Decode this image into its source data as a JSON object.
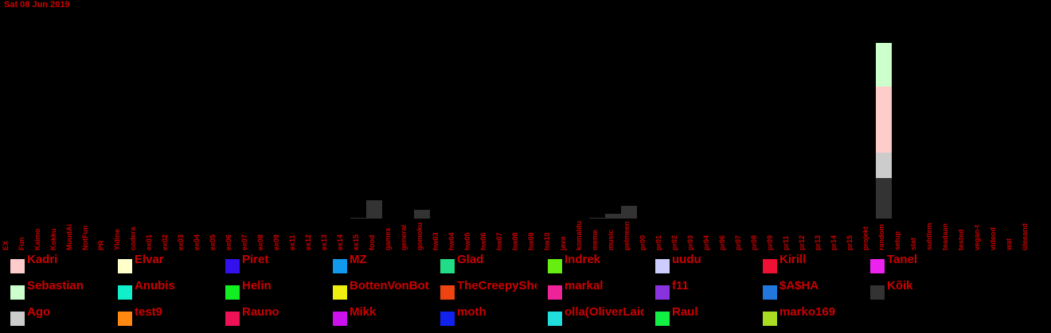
{
  "header": {
    "date": "Sat 08 Jun 2019"
  },
  "colors": {
    "text": "#cc0000",
    "background": "#000000"
  },
  "chart_data": {
    "type": "bar",
    "stacked": true,
    "categories": [
      "EX",
      "Fun",
      "Kalmo",
      "Kokku",
      "MuudAi",
      "NotFun",
      "PR",
      "Yldine",
      "codera",
      "ex01",
      "ex02",
      "ex03",
      "ex04",
      "ex05",
      "ex06",
      "ex07",
      "ex08",
      "ex09",
      "ex11",
      "ex12",
      "ex13",
      "ex14",
      "ex15",
      "food",
      "games",
      "general",
      "gomoku",
      "hw03",
      "hw04",
      "hw05",
      "hw06",
      "hw07",
      "hw08",
      "hw09",
      "hw10",
      "java",
      "komaldu",
      "meme",
      "music",
      "pelmeen",
      "pr00",
      "pr01",
      "pr02",
      "pr03",
      "pr04",
      "pr06",
      "pr07",
      "pr08",
      "pr09",
      "pr11",
      "pr12",
      "pr13",
      "pr14",
      "pr15",
      "projekt",
      "random",
      "setup",
      "stat",
      "suhtlem",
      "teadaan",
      "tested",
      "vegan-t",
      "videod",
      "wat",
      "üleeand"
    ],
    "series": [
      {
        "name": "Kõik",
        "color": "#333333",
        "values": [
          0,
          0,
          0,
          0,
          0,
          0,
          0,
          0,
          0,
          0,
          0,
          0,
          0,
          0,
          0,
          0,
          0,
          0,
          0,
          0,
          0,
          0,
          1,
          23,
          0,
          0,
          11,
          0,
          0,
          0,
          0,
          0,
          0,
          0,
          0,
          0,
          0,
          1,
          6,
          16,
          0,
          0,
          0,
          0,
          0,
          0,
          0,
          0,
          0,
          0,
          0,
          0,
          0,
          0,
          0,
          51,
          0,
          0,
          0,
          0,
          0,
          0,
          0,
          0,
          0
        ]
      },
      {
        "name": "Ago",
        "color": "#cccccc",
        "values": [
          0,
          0,
          0,
          0,
          0,
          0,
          0,
          0,
          0,
          0,
          0,
          0,
          0,
          0,
          0,
          0,
          0,
          0,
          0,
          0,
          0,
          0,
          0,
          0,
          0,
          0,
          0,
          0,
          0,
          0,
          0,
          0,
          0,
          0,
          0,
          0,
          0,
          0,
          0,
          0,
          0,
          0,
          0,
          0,
          0,
          0,
          0,
          0,
          0,
          0,
          0,
          0,
          0,
          0,
          0,
          32,
          0,
          0,
          0,
          0,
          0,
          0,
          0,
          0,
          0
        ]
      },
      {
        "name": "Kadri",
        "color": "#ffcccc",
        "values": [
          0,
          0,
          0,
          0,
          0,
          0,
          0,
          0,
          0,
          0,
          0,
          0,
          0,
          0,
          0,
          0,
          0,
          0,
          0,
          0,
          0,
          0,
          0,
          0,
          0,
          0,
          0,
          0,
          0,
          0,
          0,
          0,
          0,
          0,
          0,
          0,
          0,
          0,
          0,
          0,
          0,
          0,
          0,
          0,
          0,
          0,
          0,
          0,
          0,
          0,
          0,
          0,
          0,
          0,
          0,
          83,
          0,
          0,
          0,
          0,
          0,
          0,
          0,
          0,
          0
        ]
      },
      {
        "name": "Sebastian",
        "color": "#ccffcc",
        "values": [
          0,
          0,
          0,
          0,
          0,
          0,
          0,
          0,
          0,
          0,
          0,
          0,
          0,
          0,
          0,
          0,
          0,
          0,
          0,
          0,
          0,
          0,
          0,
          0,
          0,
          0,
          0,
          0,
          0,
          0,
          0,
          0,
          0,
          0,
          0,
          0,
          0,
          0,
          0,
          0,
          0,
          0,
          0,
          0,
          0,
          0,
          0,
          0,
          0,
          0,
          0,
          0,
          0,
          0,
          0,
          55,
          0,
          0,
          0,
          0,
          0,
          0,
          0,
          0,
          0
        ]
      }
    ],
    "legend": [
      {
        "name": "Kadri",
        "color": "#ffcccc"
      },
      {
        "name": "Elvar",
        "color": "#ffffcc"
      },
      {
        "name": "Piret",
        "color": "#3311ee"
      },
      {
        "name": "MZ",
        "color": "#1199ee"
      },
      {
        "name": "Glad",
        "color": "#22dd88"
      },
      {
        "name": "Indrek",
        "color": "#66ee11"
      },
      {
        "name": "uudu",
        "color": "#ccccff"
      },
      {
        "name": "Kirill",
        "color": "#ee1133"
      },
      {
        "name": "Tanel",
        "color": "#ee22ee"
      },
      {
        "name": "Sebastian",
        "color": "#ccffcc"
      },
      {
        "name": "Anubis",
        "color": "#11eecc"
      },
      {
        "name": "Helin",
        "color": "#11ee22"
      },
      {
        "name": "BottenVonBot",
        "color": "#eeee11"
      },
      {
        "name": "TheCreepySheep",
        "color": "#ee4411"
      },
      {
        "name": "markal",
        "color": "#ee2299"
      },
      {
        "name": "f11",
        "color": "#8833dd"
      },
      {
        "name": "$A$HA",
        "color": "#2277dd"
      },
      {
        "name": "Kõik",
        "color": "#333333"
      },
      {
        "name": "Ago",
        "color": "#cccccc"
      },
      {
        "name": "test9",
        "color": "#ff8811"
      },
      {
        "name": "Rauno",
        "color": "#ee1155"
      },
      {
        "name": "Mikk",
        "color": "#cc11ee"
      },
      {
        "name": "moth",
        "color": "#1122ee"
      },
      {
        "name": "olla(OliverLaidma)",
        "color": "#22dddd"
      },
      {
        "name": "Raul",
        "color": "#11ee44"
      },
      {
        "name": "marko169",
        "color": "#aadd22"
      }
    ],
    "grid": false,
    "legend_position": "bottom"
  }
}
